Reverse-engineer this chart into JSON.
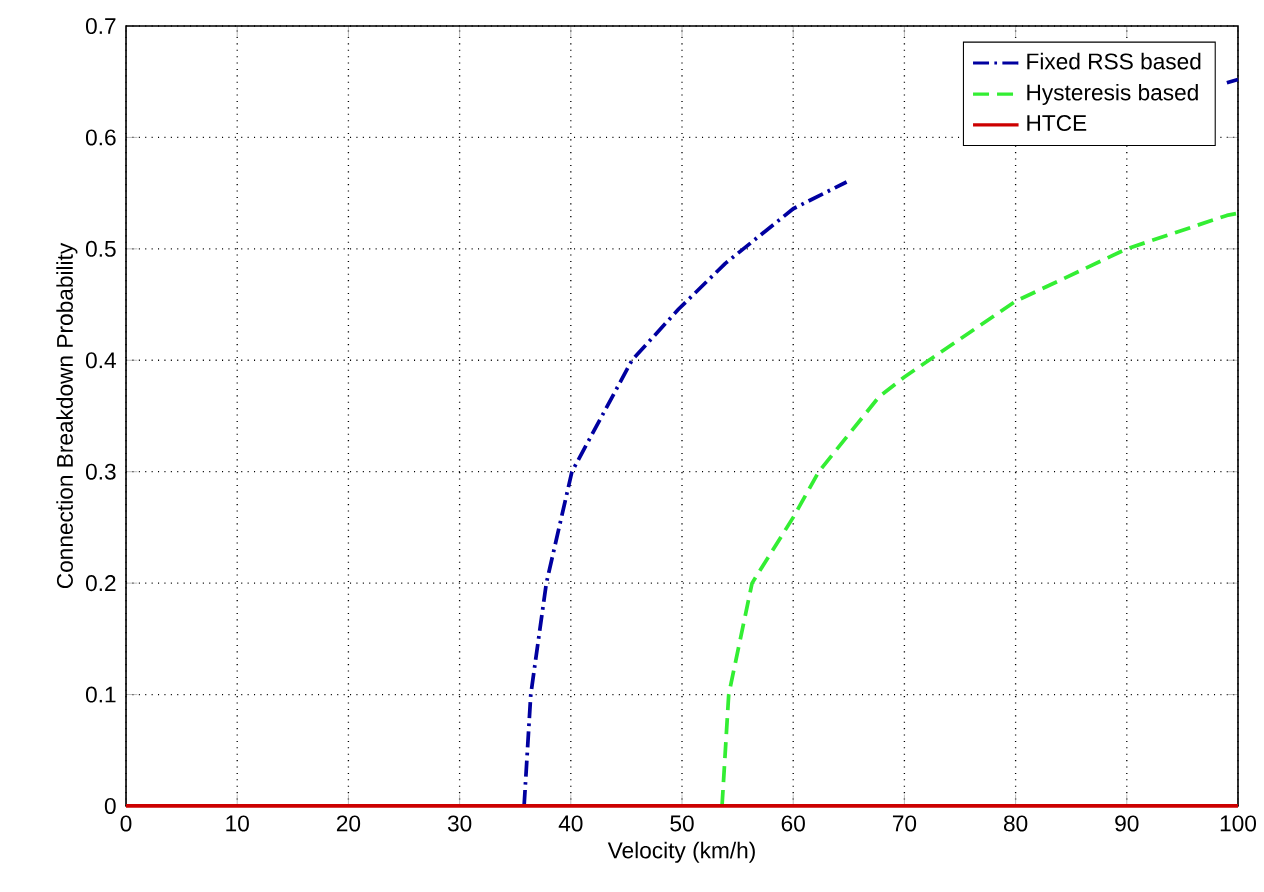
{
  "chart_data": {
    "type": "line",
    "xlabel": "Velocity (km/h)",
    "ylabel": "Connection Breakdown Probability",
    "xlim": [
      0,
      100
    ],
    "ylim": [
      0,
      0.7
    ],
    "xticks": [
      0,
      10,
      20,
      30,
      40,
      50,
      60,
      70,
      80,
      90,
      100
    ],
    "yticks": [
      0,
      0.1,
      0.2,
      0.3,
      0.4,
      0.5,
      0.6,
      0.7
    ],
    "grid": true,
    "legend": "top right",
    "series": [
      {
        "name": "Fixed RSS based",
        "color": "#0000a0",
        "line_style": "dashdot",
        "x": [
          35.8,
          36.4,
          37.8,
          40.1,
          45.5,
          49.7,
          53.9,
          60,
          64.8,
          null,
          99,
          100
        ],
        "values": [
          0,
          0.1,
          0.2,
          0.3,
          0.4,
          0.446,
          0.487,
          0.536,
          0.56,
          null,
          0.649,
          0.652
        ]
      },
      {
        "name": "Hysteresis based",
        "color": "#33ee33",
        "line_style": "dashed",
        "x": [
          53.6,
          54.2,
          56.3,
          60,
          62.3,
          67.7,
          70,
          80,
          90,
          99,
          100
        ],
        "values": [
          0,
          0.1,
          0.2,
          0.259,
          0.3,
          0.367,
          0.385,
          0.453,
          0.5,
          0.53,
          0.532
        ]
      },
      {
        "name": "HTCE",
        "color": "#cc0000",
        "line_style": "solid",
        "x": [
          0,
          100
        ],
        "values": [
          0,
          0
        ]
      }
    ]
  }
}
